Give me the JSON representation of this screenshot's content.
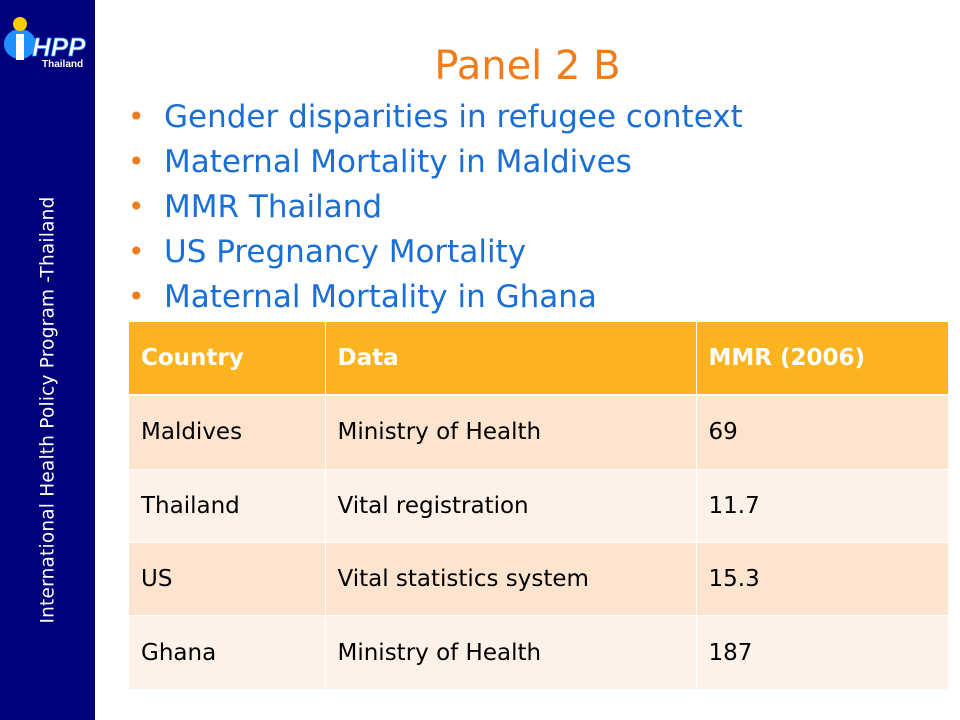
{
  "sidebar": {
    "vertical_text": "International Health Policy Program -Thailand",
    "logo_text": "iHPP",
    "logo_subtext": "Thailand"
  },
  "slide": {
    "title": "Panel 2 B",
    "bullets": [
      "Gender disparities in refugee context",
      "Maternal Mortality in Maldives",
      "MMR Thailand",
      "US Pregnancy Mortality",
      "Maternal Mortality in Ghana"
    ]
  },
  "table": {
    "headers": [
      "Country",
      "Data",
      "MMR (2006)"
    ],
    "rows": [
      [
        "Maldives",
        "Ministry of Health",
        "69"
      ],
      [
        "Thailand",
        "Vital registration",
        "11.7"
      ],
      [
        "US",
        "Vital statistics system",
        "15.3"
      ],
      [
        "Ghana",
        "Ministry of Health",
        "187"
      ]
    ]
  },
  "colors": {
    "sidebar": "#00007a",
    "title": "#f07d1c",
    "bullet_text": "#1a6fd6",
    "header_fill": "#fbb41f",
    "row_odd": "#fde4cf",
    "row_even": "#fef2e8"
  }
}
